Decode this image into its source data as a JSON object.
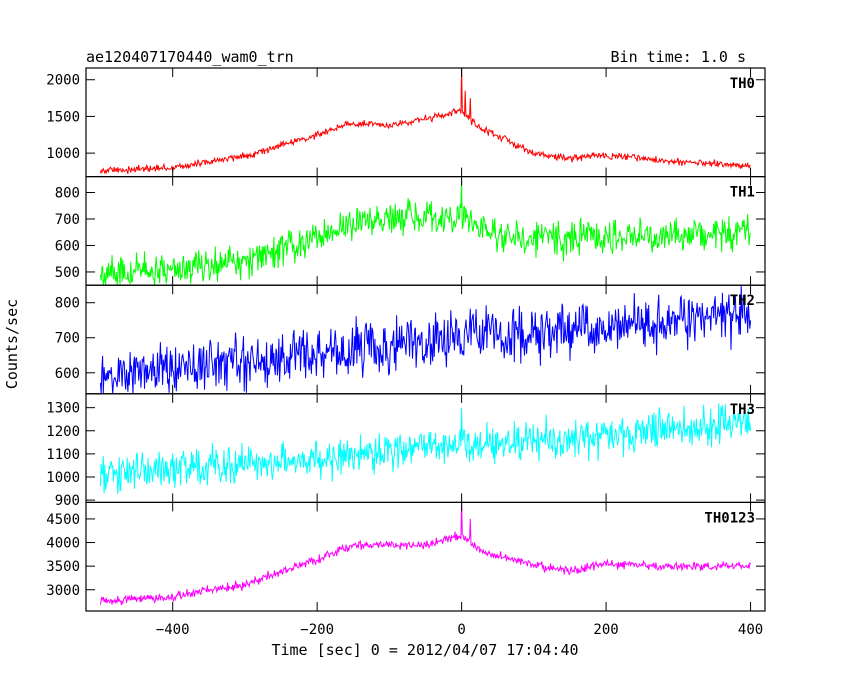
{
  "chart_data": {
    "type": "line",
    "title": "ae120407170440_wam0_trn",
    "bin_time": "Bin time: 1.0 s",
    "xlabel": "Time [sec] 0 = 2012/04/07 17:04:40",
    "ylabel": "Counts/sec",
    "xlim": [
      -520,
      420
    ],
    "x_ticks": [
      -400,
      -200,
      0,
      200,
      400
    ],
    "x_tick_labels": [
      "−400",
      "−200",
      "0",
      "200",
      "400"
    ],
    "panels": [
      {
        "name": "TH0",
        "color": "#ff0000",
        "ylim": [
          680,
          2160
        ],
        "yticks": [
          1000,
          1500,
          2000
        ],
        "profile": [
          [
            -500,
            760
          ],
          [
            -400,
            800
          ],
          [
            -300,
            960
          ],
          [
            -200,
            1250
          ],
          [
            -160,
            1400
          ],
          [
            -100,
            1380
          ],
          [
            -20,
            1520
          ],
          [
            0,
            1580
          ],
          [
            20,
            1380
          ],
          [
            100,
            990
          ],
          [
            150,
            930
          ],
          [
            200,
            970
          ],
          [
            250,
            930
          ],
          [
            300,
            880
          ],
          [
            400,
            820
          ]
        ],
        "noise": 30,
        "spikes": [
          [
            0,
            2170
          ],
          [
            5,
            1850
          ],
          [
            12,
            1750
          ]
        ]
      },
      {
        "name": "TH1",
        "color": "#00ff00",
        "ylim": [
          450,
          860
        ],
        "yticks": [
          500,
          600,
          700,
          800
        ],
        "profile": [
          [
            -500,
            490
          ],
          [
            -300,
            540
          ],
          [
            -200,
            630
          ],
          [
            -150,
            680
          ],
          [
            0,
            710
          ],
          [
            30,
            650
          ],
          [
            100,
            620
          ],
          [
            200,
            630
          ],
          [
            300,
            640
          ],
          [
            400,
            650
          ]
        ],
        "noise": 40,
        "spikes": [
          [
            0,
            850
          ]
        ]
      },
      {
        "name": "TH2",
        "color": "#0000ff",
        "ylim": [
          540,
          850
        ],
        "yticks": [
          600,
          700,
          800
        ],
        "profile": [
          [
            -500,
            590
          ],
          [
            -300,
            630
          ],
          [
            -100,
            680
          ],
          [
            0,
            700
          ],
          [
            200,
            730
          ],
          [
            400,
            770
          ]
        ],
        "noise": 45,
        "spikes": []
      },
      {
        "name": "TH3",
        "color": "#00ffff",
        "ylim": [
          890,
          1360
        ],
        "yticks": [
          900,
          1000,
          1100,
          1200,
          1300
        ],
        "profile": [
          [
            -500,
            1000
          ],
          [
            -300,
            1060
          ],
          [
            -100,
            1110
          ],
          [
            0,
            1130
          ],
          [
            200,
            1180
          ],
          [
            400,
            1240
          ]
        ],
        "noise": 50,
        "spikes": [
          [
            0,
            1300
          ]
        ]
      },
      {
        "name": "TH0123",
        "color": "#ff00ff",
        "ylim": [
          2550,
          4850
        ],
        "yticks": [
          3000,
          3500,
          4000,
          4500
        ],
        "profile": [
          [
            -500,
            2750
          ],
          [
            -400,
            2850
          ],
          [
            -300,
            3100
          ],
          [
            -200,
            3650
          ],
          [
            -150,
            3950
          ],
          [
            -50,
            3950
          ],
          [
            0,
            4150
          ],
          [
            30,
            3800
          ],
          [
            100,
            3520
          ],
          [
            150,
            3400
          ],
          [
            200,
            3550
          ],
          [
            300,
            3480
          ],
          [
            400,
            3520
          ]
        ],
        "noise": 55,
        "spikes": [
          [
            0,
            4880
          ],
          [
            12,
            4500
          ]
        ]
      }
    ]
  }
}
